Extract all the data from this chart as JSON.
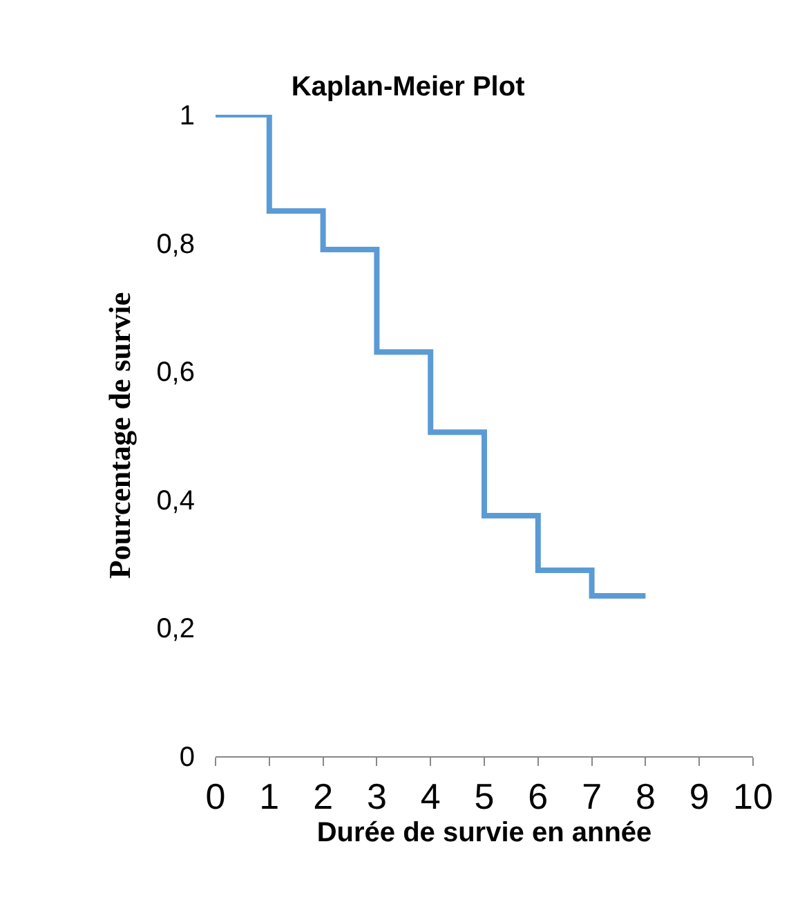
{
  "chart_data": {
    "type": "step",
    "title": "Kaplan-Meier Plot",
    "xlabel": "Durée de survie en année",
    "ylabel": "Pourcentage de survie",
    "x": [
      0,
      1,
      2,
      3,
      4,
      5,
      6,
      7,
      8
    ],
    "series": [
      {
        "color": "#5b9bd5",
        "values": [
          1,
          0.85,
          0.79,
          0.63,
          0.505,
          0.375,
          0.29,
          0.25,
          0.25
        ]
      }
    ],
    "xlim": [
      0,
      10
    ],
    "xticks": [
      0,
      1,
      2,
      3,
      4,
      5,
      6,
      7,
      8,
      9,
      10
    ],
    "ylim": [
      0,
      1
    ],
    "yticks": [
      0,
      {
        "value": 0.2,
        "label": "0,2"
      },
      {
        "value": 0.4,
        "label": "0,4"
      },
      {
        "value": 0.6,
        "label": "0,6"
      },
      {
        "value": 0.8,
        "label": "0,8"
      },
      1
    ],
    "marker": "none",
    "line_style": "solid"
  }
}
